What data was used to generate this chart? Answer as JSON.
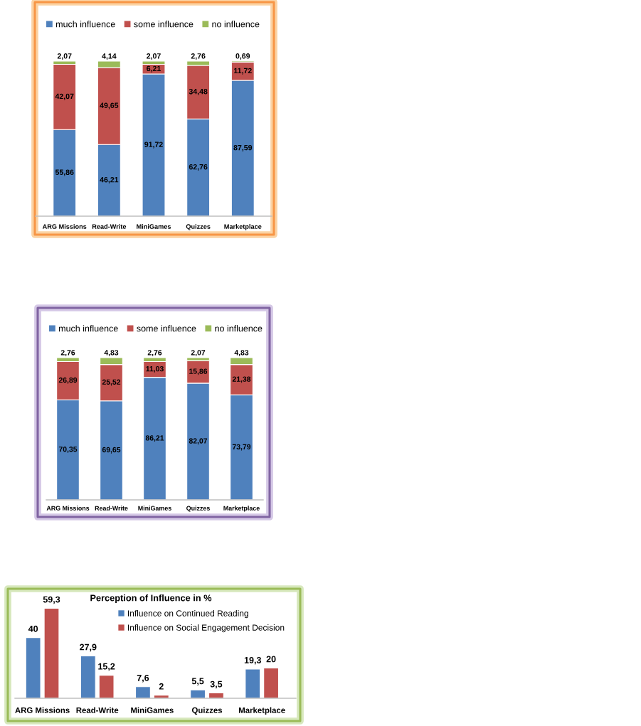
{
  "chart_data": [
    {
      "type": "bar",
      "stacked": true,
      "categories": [
        "ARG Missions",
        "Read-Write",
        "MiniGames",
        "Quizzes",
        "Marketplace"
      ],
      "series": [
        {
          "name": "much influence",
          "color": "#4f81bd",
          "values": [
            55.86,
            46.21,
            91.72,
            62.76,
            87.59
          ],
          "value_labels": [
            "55,86",
            "46,21",
            "91,72",
            "62,76",
            "87,59"
          ]
        },
        {
          "name": "some influence",
          "color": "#c0504d",
          "values": [
            42.07,
            49.65,
            6.21,
            34.48,
            11.72
          ],
          "value_labels": [
            "42,07",
            "49,65",
            "6,21",
            "34,48",
            "11,72"
          ]
        },
        {
          "name": "no influence",
          "color": "#9bbb59",
          "values": [
            2.07,
            4.14,
            2.07,
            2.76,
            0.69
          ],
          "value_labels": [
            "2,07",
            "4,14",
            "2,07",
            "2,76",
            "0,69"
          ]
        }
      ],
      "ylim": [
        0,
        100
      ],
      "tick_labels": "x",
      "legend": "top"
    },
    {
      "type": "bar",
      "stacked": true,
      "categories": [
        "ARG Missions",
        "Read-Write",
        "MiniGames",
        "Quizzes",
        "Marketplace"
      ],
      "series": [
        {
          "name": "much influence",
          "color": "#4f81bd",
          "values": [
            70.35,
            69.65,
            86.21,
            82.07,
            73.79
          ],
          "value_labels": [
            "70,35",
            "69,65",
            "86,21",
            "82,07",
            "73,79"
          ]
        },
        {
          "name": "some influence",
          "color": "#c0504d",
          "values": [
            26.89,
            25.52,
            11.03,
            15.86,
            21.38
          ],
          "value_labels": [
            "26,89",
            "25,52",
            "11,03",
            "15,86",
            "21,38"
          ]
        },
        {
          "name": "no influence",
          "color": "#9bbb59",
          "values": [
            2.76,
            4.83,
            2.76,
            2.07,
            4.83
          ],
          "value_labels": [
            "2,76",
            "4,83",
            "2,76",
            "2,07",
            "4,83"
          ]
        }
      ],
      "ylim": [
        0,
        100
      ],
      "tick_labels": "x",
      "legend": "top"
    },
    {
      "type": "bar",
      "title": "Perception of Influence in %",
      "categories": [
        "ARG Missions",
        "Read-Write",
        "MiniGames",
        "Quizzes",
        "Marketplace"
      ],
      "series": [
        {
          "name": "Influence on Continued Reading",
          "color": "#4f81bd",
          "values": [
            40,
            27.9,
            7.6,
            5.5,
            19.3
          ],
          "value_labels": [
            "40",
            "27,9",
            "7,6",
            "5,5",
            "19,3"
          ]
        },
        {
          "name": "Influence on Social Engagement Decision",
          "color": "#c0504d",
          "values": [
            59.3,
            15.2,
            2,
            3.5,
            20
          ],
          "value_labels": [
            "59,3",
            "15,2",
            "2",
            "3,5",
            "20"
          ]
        }
      ],
      "tick_labels": "x",
      "legend": "top right"
    }
  ]
}
